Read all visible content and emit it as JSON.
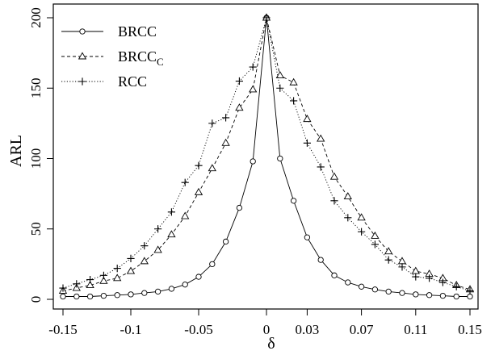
{
  "chart_data": {
    "type": "line",
    "title": "",
    "xlabel": "δ",
    "ylabel": "ARL",
    "xlim": [
      -0.15,
      0.15
    ],
    "ylim": [
      0,
      200
    ],
    "x_ticks": [
      -0.15,
      -0.1,
      -0.05,
      0,
      0.03,
      0.07,
      0.11,
      0.15
    ],
    "x_tick_labels": [
      "-0.15",
      "-0.1",
      "-0.05",
      "0",
      "0.03",
      "0.07",
      "0.11",
      "0.15"
    ],
    "y_ticks": [
      0,
      50,
      100,
      150,
      200
    ],
    "y_tick_labels": [
      "0",
      "50",
      "100",
      "150",
      "200"
    ],
    "grid": false,
    "legend_position": "top-left",
    "x": [
      -0.15,
      -0.14,
      -0.13,
      -0.12,
      -0.11,
      -0.1,
      -0.09,
      -0.08,
      -0.07,
      -0.06,
      -0.05,
      -0.04,
      -0.03,
      -0.02,
      -0.01,
      0,
      0.01,
      0.02,
      0.03,
      0.04,
      0.05,
      0.06,
      0.07,
      0.08,
      0.09,
      0.1,
      0.11,
      0.12,
      0.13,
      0.14,
      0.15
    ],
    "series": [
      {
        "name": "BRCC",
        "marker": "circle",
        "line": "solid",
        "values": [
          2,
          2,
          2,
          2.5,
          3,
          3.5,
          4.5,
          5.5,
          7.5,
          10.5,
          16,
          25,
          41,
          65,
          98,
          200,
          100,
          70,
          44,
          28,
          17,
          12,
          9,
          7,
          5.5,
          4.5,
          3.5,
          3,
          2.5,
          2,
          2
        ]
      },
      {
        "name": "BRCC",
        "name_subscript": "C",
        "marker": "triangle",
        "line": "dashed",
        "values": [
          6,
          8,
          10,
          13,
          15,
          20,
          27,
          35,
          46,
          59,
          76,
          93,
          111,
          136,
          149,
          200,
          159,
          154,
          128,
          114,
          87,
          73,
          58,
          45,
          34,
          27,
          20,
          18,
          15,
          10,
          7
        ]
      },
      {
        "name": "RCC",
        "marker": "plus",
        "line": "dotted",
        "values": [
          8,
          11,
          14,
          17,
          22,
          29,
          38,
          50,
          62,
          83,
          95,
          125,
          129,
          155,
          165,
          200,
          150,
          141,
          111,
          94,
          70,
          58,
          48,
          39,
          28,
          23,
          16,
          15,
          12,
          9,
          6
        ]
      }
    ]
  }
}
